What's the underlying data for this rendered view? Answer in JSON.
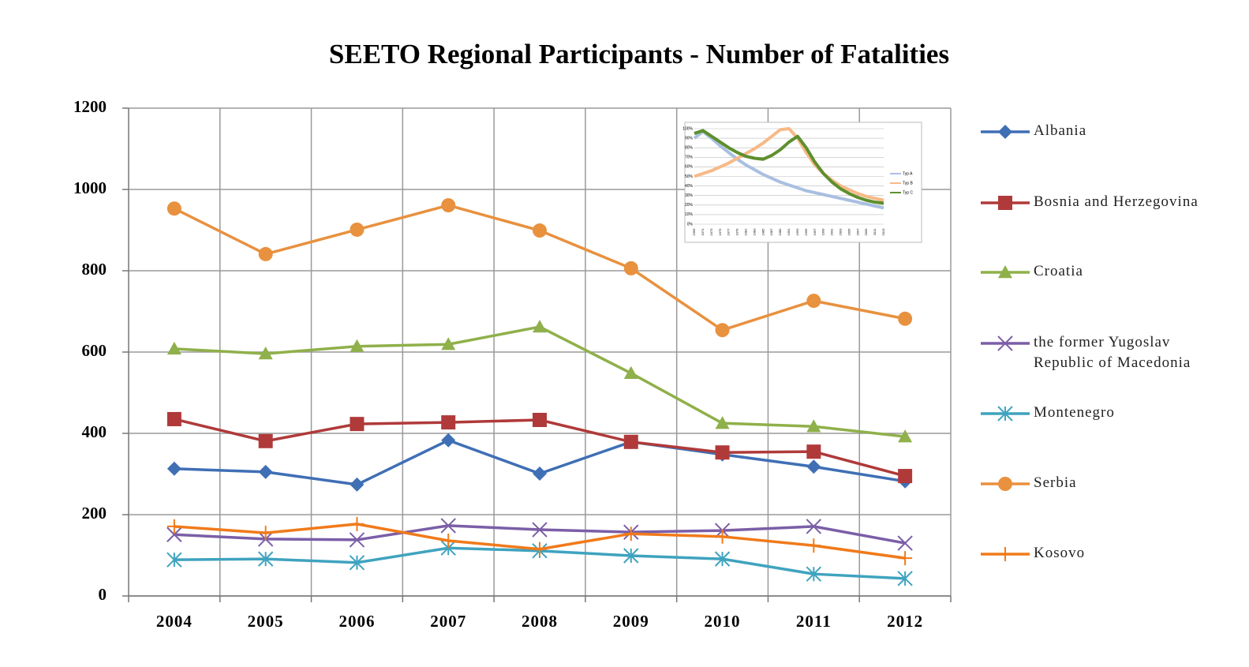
{
  "chart_data": [
    {
      "type": "line",
      "title": "SEETO Regional Participants - Number of Fatalities",
      "categories": [
        "2004",
        "2005",
        "2006",
        "2007",
        "2008",
        "2009",
        "2010",
        "2011",
        "2012"
      ],
      "ylim": [
        0,
        1200
      ],
      "yticks": [
        0,
        200,
        400,
        600,
        800,
        1000,
        1200
      ],
      "grid": true,
      "legend": "right",
      "series": [
        {
          "name": "Albania",
          "color": "#3f6fb5",
          "marker": "diamond",
          "values": [
            313,
            305,
            274,
            383,
            301,
            379,
            348,
            318,
            282
          ]
        },
        {
          "name": "Bosnia and Herzegovina",
          "color": "#b03a3a",
          "marker": "square",
          "values": [
            435,
            381,
            423,
            427,
            433,
            379,
            353,
            355,
            295
          ]
        },
        {
          "name": "Croatia",
          "color": "#8fb04a",
          "marker": "triangle",
          "values": [
            608,
            596,
            614,
            619,
            662,
            548,
            425,
            417,
            392
          ]
        },
        {
          "name": "the former Yugoslav Republic of Macedonia",
          "color": "#7b5ea7",
          "marker": "x",
          "values": [
            151,
            140,
            138,
            173,
            163,
            157,
            161,
            171,
            130
          ]
        },
        {
          "name": "Montenegro",
          "color": "#3fa3bf",
          "marker": "star",
          "values": [
            89,
            91,
            82,
            118,
            111,
            99,
            91,
            54,
            43
          ]
        },
        {
          "name": "Serbia",
          "color": "#e8913f",
          "marker": "circle",
          "values": [
            953,
            841,
            901,
            961,
            899,
            806,
            654,
            726,
            682
          ]
        },
        {
          "name": "Kosovo",
          "color": "#f07a1a",
          "marker": "plus",
          "values": [
            171,
            155,
            177,
            136,
            115,
            153,
            146,
            124,
            93
          ]
        }
      ]
    },
    {
      "type": "line",
      "categories": [
        "1969",
        "1971",
        "1973",
        "1975",
        "1977",
        "1979",
        "1981",
        "1983",
        "1985",
        "1987",
        "1989",
        "1991",
        "1993",
        "1995",
        "1997",
        "1999",
        "2001",
        "2003",
        "2005",
        "2007",
        "2009",
        "2011",
        "2013"
      ],
      "ylim": [
        0,
        100
      ],
      "yticks": [
        {
          "value": 0,
          "label": "0%"
        },
        {
          "value": 10,
          "label": "10%"
        },
        {
          "value": 20,
          "label": "20%"
        },
        {
          "value": 30,
          "label": "30%"
        },
        {
          "value": 40,
          "label": "40%"
        },
        {
          "value": 50,
          "label": "50%"
        },
        {
          "value": 60,
          "label": "60%"
        },
        {
          "value": 70,
          "label": "70%"
        },
        {
          "value": 80,
          "label": "80%"
        },
        {
          "value": 90,
          "label": "90%"
        },
        {
          "value": 100,
          "label": "100%"
        }
      ],
      "grid": true,
      "legend": "right",
      "series": [
        {
          "name": "Typ A",
          "color": "#a9bfe0",
          "values": [
            90,
            97,
            90,
            82,
            75,
            68,
            62,
            57,
            52,
            48,
            44,
            41,
            38,
            35,
            33,
            31,
            29,
            27,
            25,
            23,
            21,
            19,
            17
          ]
        },
        {
          "name": "Typ B",
          "color": "#f7b987",
          "values": [
            50,
            53,
            56,
            60,
            64,
            69,
            74,
            79,
            85,
            92,
            99,
            100,
            90,
            75,
            62,
            53,
            46,
            40,
            36,
            32,
            29,
            27,
            25
          ]
        },
        {
          "name": "Typ C",
          "color": "#5e8f2e",
          "values": [
            95,
            98,
            92,
            86,
            80,
            75,
            71,
            69,
            68,
            72,
            78,
            86,
            92,
            80,
            65,
            53,
            44,
            37,
            32,
            28,
            25,
            23,
            22
          ]
        }
      ]
    }
  ]
}
